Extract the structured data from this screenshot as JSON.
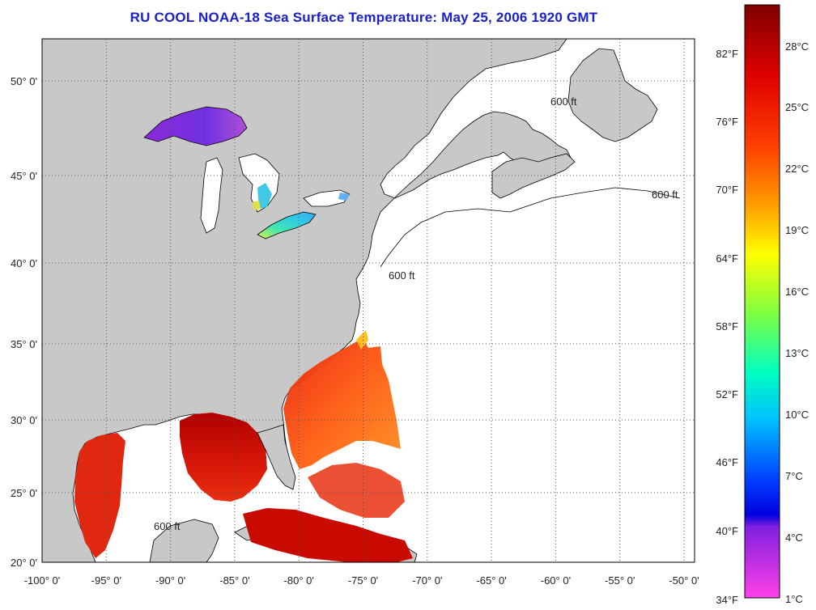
{
  "title": "RU COOL  NOAA-18  Sea Surface Temperature:  May 25, 2006 1920 GMT",
  "map": {
    "lon_labels": [
      "-100° 0'",
      "-95° 0'",
      "-90° 0'",
      "-85° 0'",
      "-80° 0'",
      "-75° 0'",
      "-70° 0'",
      "-65° 0'",
      "-60° 0'",
      "-55° 0'",
      "-50° 0'"
    ],
    "lat_labels": [
      "50° 0'",
      "45° 0'",
      "40° 0'",
      "35° 0'",
      "30° 0'",
      "25° 0'",
      "20° 0'"
    ],
    "lon_range": [
      -100,
      -50
    ],
    "lat_range": [
      20,
      52
    ],
    "isobath_label": "600 ft",
    "colors": {
      "land": "#c8c8c8",
      "ocean_no_data": "#ffffff",
      "grid": "#555555"
    }
  },
  "colorbar": {
    "fahrenheit_labels": [
      "82°F",
      "76°F",
      "70°F",
      "64°F",
      "58°F",
      "52°F",
      "46°F",
      "40°F",
      "34°F"
    ],
    "celsius_labels": [
      "28°C",
      "25°C",
      "22°C",
      "19°C",
      "16°C",
      "13°C",
      "10°C",
      "7°C",
      "4°C",
      "1°C"
    ]
  }
}
